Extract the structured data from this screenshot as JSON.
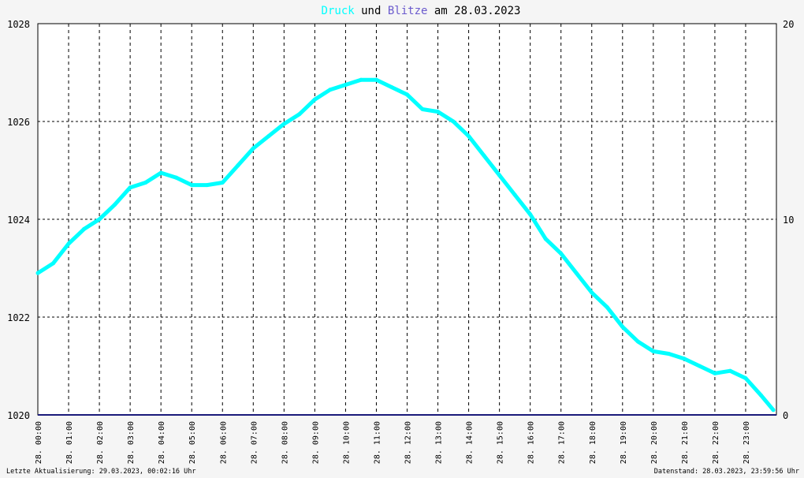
{
  "chart_data": {
    "type": "line",
    "title_parts": [
      {
        "text": "Druck",
        "color": "#00ffff"
      },
      {
        "text": " und ",
        "color": "#000000"
      },
      {
        "text": "Blitze",
        "color": "#6a5acd"
      },
      {
        "text": " am 28.03.2023",
        "color": "#000000"
      }
    ],
    "y_left": {
      "min": 1020,
      "max": 1028,
      "ticks": [
        1020,
        1022,
        1024,
        1026,
        1028
      ]
    },
    "y_right": {
      "min": 0,
      "max": 20,
      "ticks": [
        0,
        10,
        20
      ]
    },
    "x_range_hours": [
      0,
      24
    ],
    "x_tick_labels": [
      "28. 00:00",
      "28. 01:00",
      "28. 02:00",
      "28. 03:00",
      "28. 04:00",
      "28. 05:00",
      "28. 06:00",
      "28. 07:00",
      "28. 08:00",
      "28. 09:00",
      "28. 10:00",
      "28. 11:00",
      "28. 12:00",
      "28. 13:00",
      "28. 14:00",
      "28. 15:00",
      "28. 16:00",
      "28. 17:00",
      "28. 18:00",
      "28. 19:00",
      "28. 20:00",
      "28. 21:00",
      "28. 22:00",
      "28. 23:00"
    ],
    "grid": true,
    "series": [
      {
        "name": "Druck",
        "axis": "left",
        "color": "#00ffff",
        "x": [
          0.0,
          0.5,
          1.0,
          1.5,
          2.0,
          2.5,
          3.0,
          3.5,
          4.0,
          4.5,
          5.0,
          5.5,
          6.0,
          6.5,
          7.0,
          7.5,
          8.0,
          8.5,
          9.0,
          9.5,
          10.0,
          10.5,
          11.0,
          11.5,
          12.0,
          12.5,
          13.0,
          13.5,
          14.0,
          14.5,
          15.0,
          15.5,
          16.0,
          16.5,
          17.0,
          17.5,
          18.0,
          18.5,
          19.0,
          19.5,
          20.0,
          20.5,
          21.0,
          21.5,
          22.0,
          22.5,
          23.0,
          23.5,
          23.9
        ],
        "values": [
          1022.9,
          1023.1,
          1023.5,
          1023.8,
          1024.0,
          1024.3,
          1024.65,
          1024.75,
          1024.95,
          1024.85,
          1024.7,
          1024.7,
          1024.75,
          1025.1,
          1025.45,
          1025.7,
          1025.95,
          1026.15,
          1026.45,
          1026.65,
          1026.75,
          1026.85,
          1026.85,
          1026.7,
          1026.55,
          1026.25,
          1026.2,
          1026.0,
          1025.7,
          1025.3,
          1024.9,
          1024.5,
          1024.1,
          1023.6,
          1023.3,
          1022.9,
          1022.5,
          1022.2,
          1021.8,
          1021.5,
          1021.3,
          1021.25,
          1021.15,
          1021.0,
          1020.85,
          1020.9,
          1020.75,
          1020.4,
          1020.1
        ]
      },
      {
        "name": "Blitze",
        "axis": "right",
        "color": "#1a1a7a",
        "x": [
          0,
          24
        ],
        "values": [
          0,
          0
        ]
      }
    ]
  },
  "footer": {
    "left": "Letzte Aktualisierung: 29.03.2023, 00:02:16 Uhr",
    "right": "Datenstand: 28.03.2023, 23:59:56 Uhr"
  }
}
